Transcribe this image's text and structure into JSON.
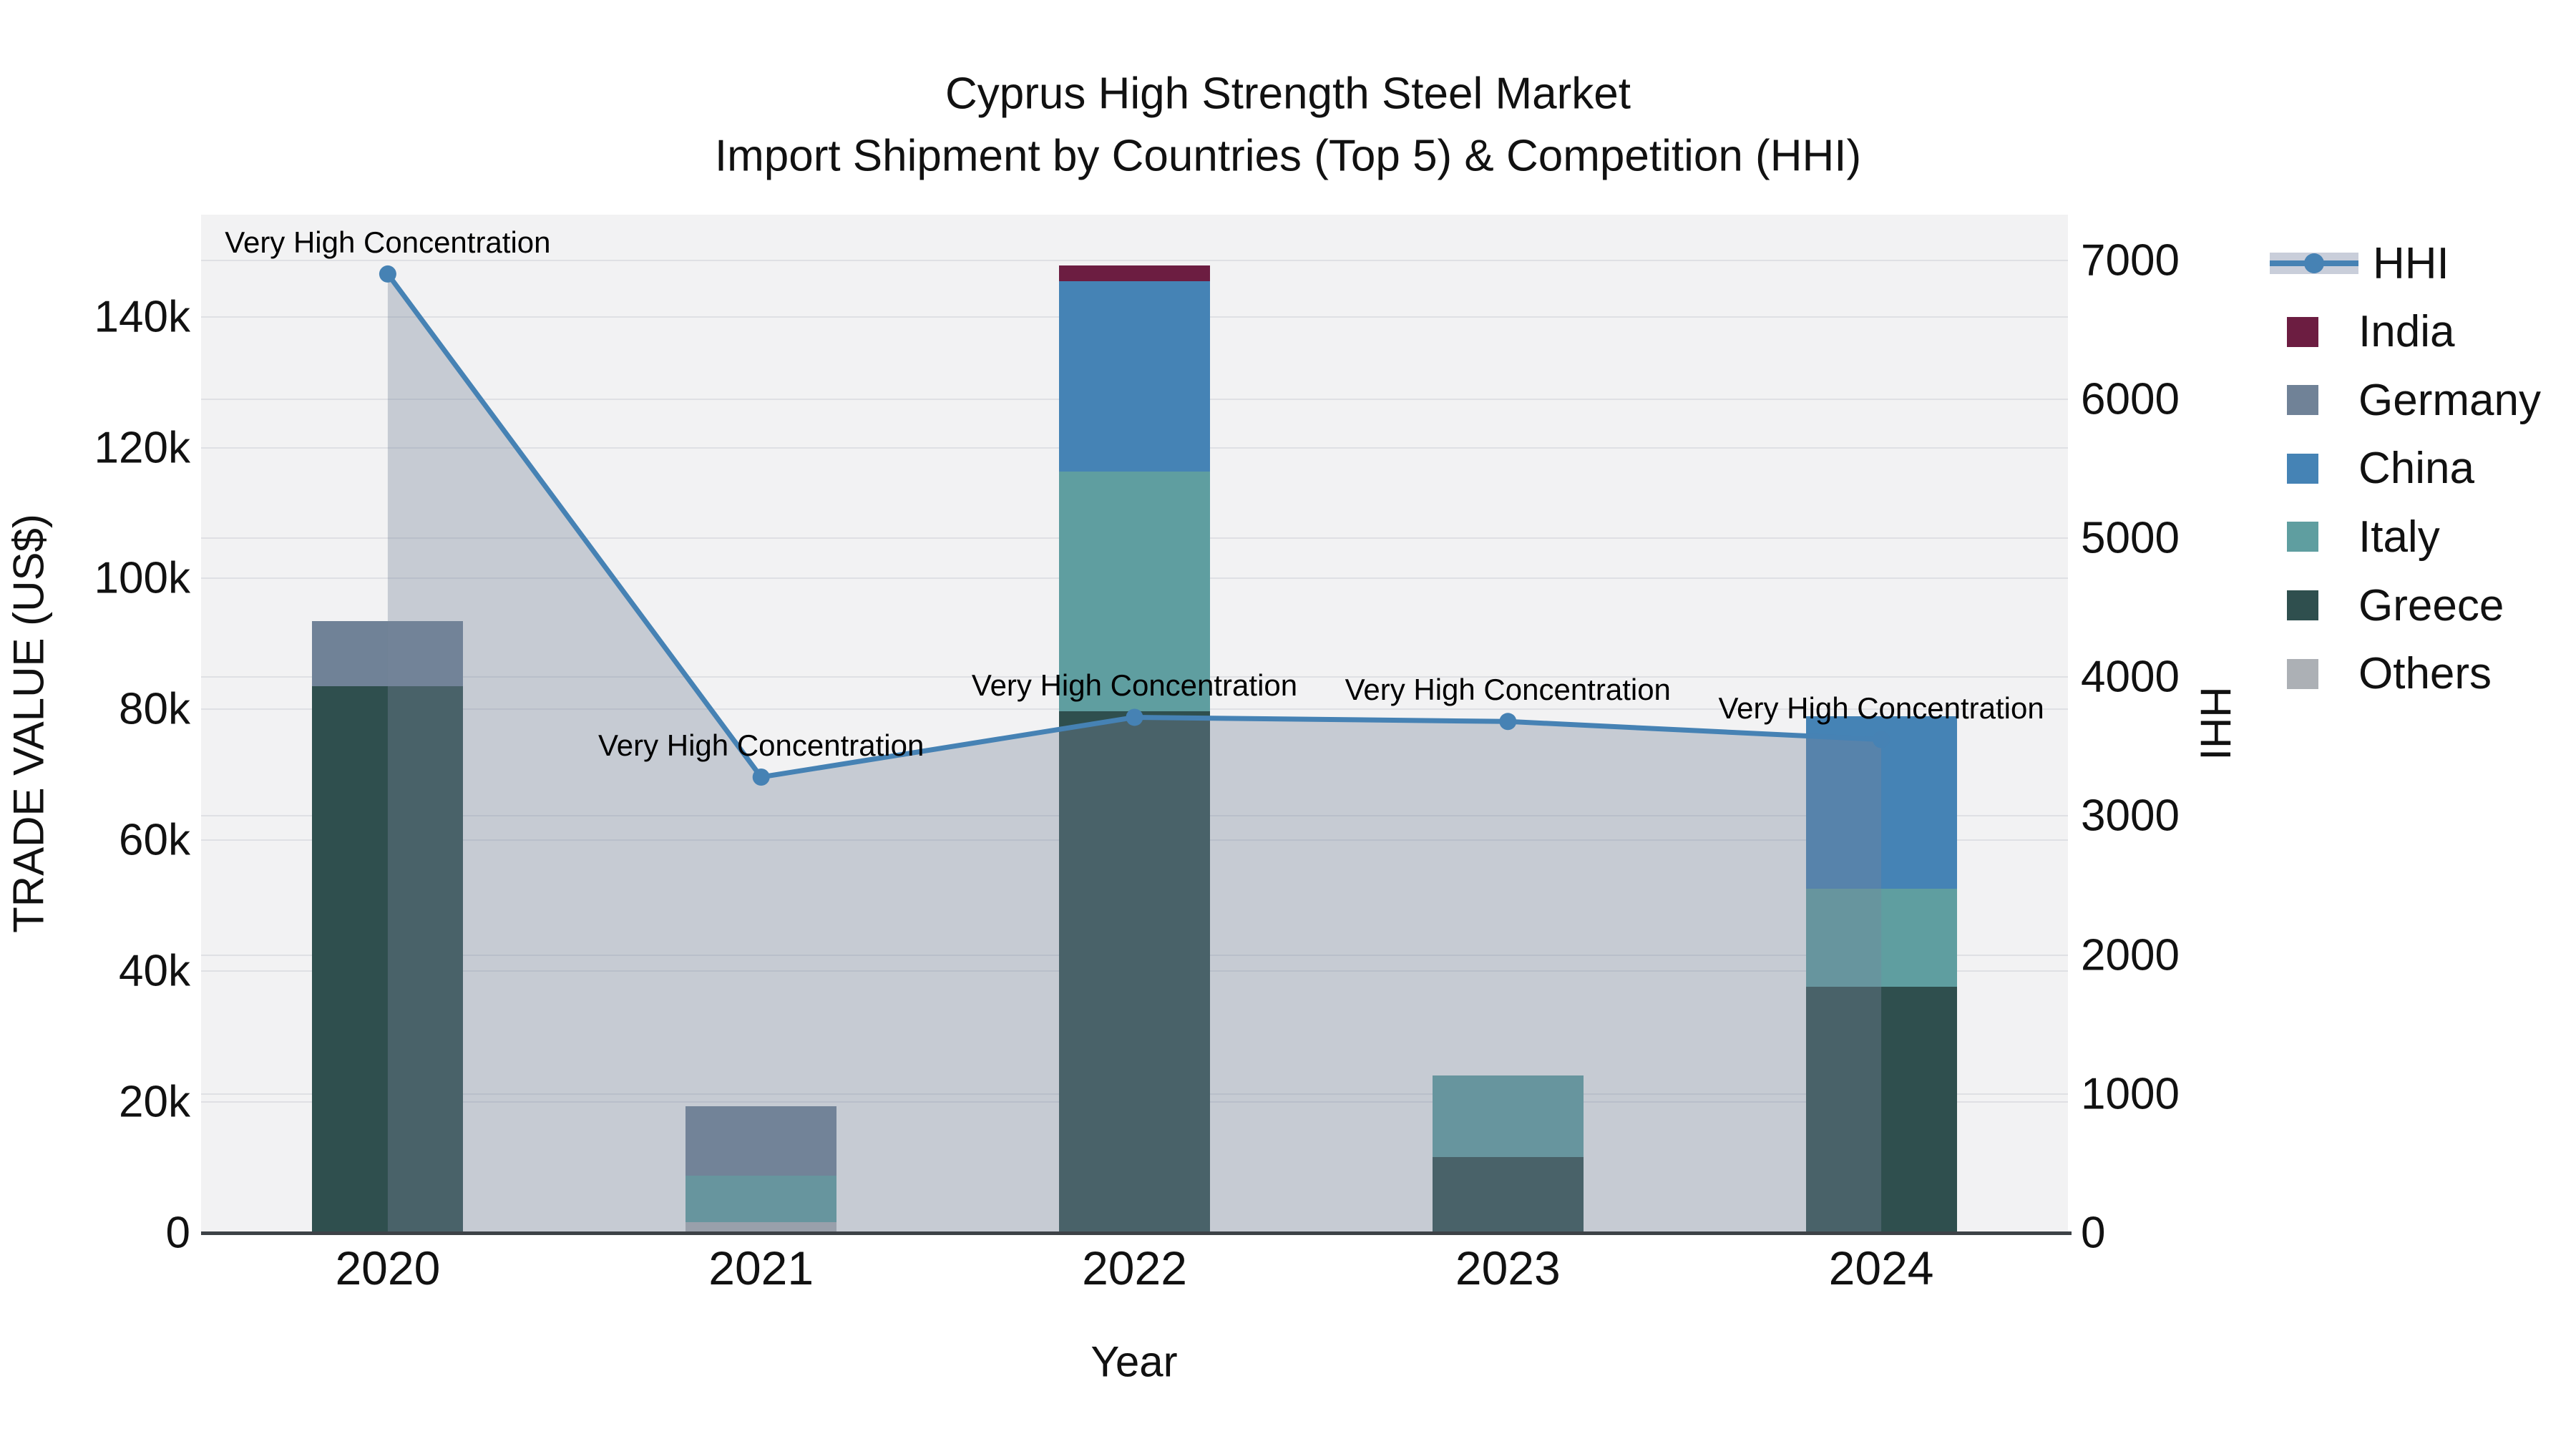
{
  "title": {
    "line1": "Cyprus High Strength Steel Market",
    "line2": "Import Shipment by Countries (Top 5) & Competition (HHI)"
  },
  "axes": {
    "x": {
      "title": "Year",
      "categories": [
        "2020",
        "2021",
        "2022",
        "2023",
        "2024"
      ]
    },
    "left": {
      "title": "TRADE VALUE (US$)",
      "ticks": [
        {
          "label": "0",
          "value": 0
        },
        {
          "label": "20k",
          "value": 20000
        },
        {
          "label": "40k",
          "value": 40000
        },
        {
          "label": "60k",
          "value": 60000
        },
        {
          "label": "80k",
          "value": 80000
        },
        {
          "label": "100k",
          "value": 100000
        },
        {
          "label": "120k",
          "value": 120000
        },
        {
          "label": "140k",
          "value": 140000
        }
      ]
    },
    "right": {
      "title": "HHI",
      "ticks": [
        {
          "label": "0",
          "value": 0
        },
        {
          "label": "1000",
          "value": 1000
        },
        {
          "label": "2000",
          "value": 2000
        },
        {
          "label": "3000",
          "value": 3000
        },
        {
          "label": "4000",
          "value": 4000
        },
        {
          "label": "5000",
          "value": 5000
        },
        {
          "label": "6000",
          "value": 6000
        },
        {
          "label": "7000",
          "value": 7000
        }
      ]
    }
  },
  "legend": {
    "items": [
      {
        "label": "HHI",
        "series": "HHI",
        "symbol": "line"
      },
      {
        "label": "India",
        "series": "India",
        "symbol": "square"
      },
      {
        "label": "Germany",
        "series": "Germany",
        "symbol": "square"
      },
      {
        "label": "China",
        "series": "China",
        "symbol": "square"
      },
      {
        "label": "Italy",
        "series": "Italy",
        "symbol": "square"
      },
      {
        "label": "Greece",
        "series": "Greece",
        "symbol": "square"
      },
      {
        "label": "Others",
        "series": "Others",
        "symbol": "square"
      }
    ]
  },
  "colors": {
    "hhi_line": "#4682B4",
    "area_fill": "rgba(120,133,155,0.36)",
    "plot_bg": "#F2F2F3",
    "grid": "#DFE0E4",
    "axis_line": "#3D4247",
    "text": "#111111",
    "legend_band": "#C9CEDA",
    "series": {
      "India": "#6C1D41",
      "Germany": "#708297",
      "China": "#4583B5",
      "Italy": "#5F9EA0",
      "Greece": "#2F4F4E",
      "Others": "#ACB0B5"
    }
  },
  "chart_data": {
    "type": "bar+line",
    "title": "Cyprus High Strength Steel Market — Import Shipment by Countries (Top 5) & Competition (HHI)",
    "xlabel": "Year",
    "ylabel_left": "TRADE VALUE (US$)",
    "ylabel_right": "HHI",
    "categories": [
      "2020",
      "2021",
      "2022",
      "2023",
      "2024"
    ],
    "stack_order": [
      "Greece",
      "Others",
      "Italy",
      "China",
      "Germany",
      "India"
    ],
    "series": [
      {
        "name": "India",
        "values": [
          0,
          0,
          2400,
          0,
          0
        ]
      },
      {
        "name": "Germany",
        "values": [
          10000,
          10600,
          0,
          0,
          0
        ]
      },
      {
        "name": "China",
        "values": [
          0,
          0,
          29100,
          0,
          26400
        ]
      },
      {
        "name": "Italy",
        "values": [
          0,
          7200,
          36600,
          12500,
          15000
        ]
      },
      {
        "name": "Greece",
        "values": [
          83500,
          0,
          79700,
          11600,
          37600
        ]
      },
      {
        "name": "Others",
        "values": [
          0,
          1600,
          0,
          0,
          0
        ]
      }
    ],
    "line_series": {
      "name": "HHI",
      "values": [
        6900,
        3280,
        3710,
        3680,
        3550
      ]
    },
    "annotations": [
      "Very High Concentration",
      "Very High Concentration",
      "Very High Concentration",
      "Very High Concentration",
      "Very High Concentration"
    ],
    "ylim_left": [
      0,
      155600
    ],
    "ylim_right": [
      0,
      7327
    ],
    "grid": true,
    "legend_position": "right",
    "area_under_line": true
  }
}
